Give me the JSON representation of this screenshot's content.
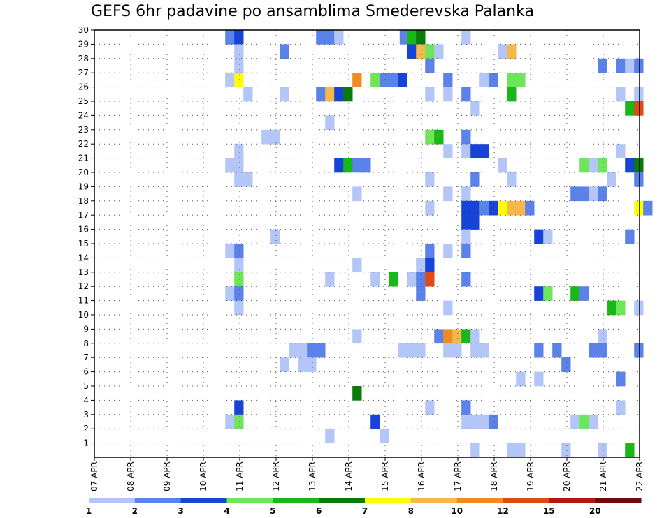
{
  "chart_data": {
    "type": "heatmap",
    "title": "GEFS 6hr padavine po ansamblima Smederevska Palanka",
    "x_tick_labels": [
      "07 APR",
      "08 APR",
      "09 APR",
      "10 APR",
      "11 APR",
      "12 APR",
      "13 APR",
      "14 APR",
      "15 APR",
      "16 APR",
      "17 APR",
      "18 APR",
      "19 APR",
      "20 APR",
      "21 APR",
      "22 APR"
    ],
    "y_tick_labels": [
      "1",
      "2",
      "3",
      "4",
      "5",
      "6",
      "7",
      "8",
      "9",
      "10",
      "11",
      "12",
      "13",
      "14",
      "15",
      "16",
      "17",
      "18",
      "19",
      "20",
      "21",
      "22",
      "23",
      "24",
      "25",
      "26",
      "27",
      "28",
      "29",
      "30"
    ],
    "x_range_days": [
      0,
      15
    ],
    "y_range": [
      0,
      30
    ],
    "grid": true,
    "colorbar": {
      "labels": [
        "1",
        "2",
        "3",
        "4",
        "5",
        "6",
        "7",
        "8",
        "10",
        "12",
        "15",
        "20"
      ],
      "colors": [
        "#b3c6f7",
        "#5b82e8",
        "#1744d6",
        "#6ee65a",
        "#19b819",
        "#0a7a0a",
        "#ffff00",
        "#f5b84a",
        "#f08c1e",
        "#e04a14",
        "#b81414",
        "#6e0a0a"
      ]
    },
    "cells": [
      [
        30,
        3.6,
        2
      ],
      [
        30,
        3.85,
        3
      ],
      [
        30,
        6.1,
        2
      ],
      [
        30,
        6.35,
        2
      ],
      [
        30,
        6.6,
        1
      ],
      [
        30,
        8.4,
        2
      ],
      [
        30,
        8.6,
        5
      ],
      [
        30,
        8.85,
        6
      ],
      [
        30,
        10.1,
        1
      ],
      [
        29,
        3.85,
        1
      ],
      [
        29,
        5.1,
        2
      ],
      [
        29,
        8.6,
        3
      ],
      [
        29,
        8.85,
        8
      ],
      [
        29,
        9.1,
        4
      ],
      [
        29,
        9.35,
        1
      ],
      [
        29,
        11.1,
        1
      ],
      [
        29,
        11.35,
        8
      ],
      [
        28,
        3.85,
        1
      ],
      [
        28,
        9.1,
        2
      ],
      [
        28,
        13.85,
        2
      ],
      [
        28,
        14.35,
        2
      ],
      [
        28,
        14.6,
        1
      ],
      [
        28,
        14.85,
        2
      ],
      [
        27,
        3.6,
        1
      ],
      [
        27,
        3.85,
        7
      ],
      [
        27,
        7.1,
        9
      ],
      [
        27,
        7.6,
        4
      ],
      [
        27,
        7.85,
        2
      ],
      [
        27,
        8.1,
        2
      ],
      [
        27,
        8.35,
        3
      ],
      [
        27,
        9.6,
        2
      ],
      [
        27,
        10.6,
        1
      ],
      [
        27,
        10.85,
        2
      ],
      [
        27,
        11.35,
        4
      ],
      [
        27,
        11.6,
        4
      ],
      [
        26,
        4.1,
        1
      ],
      [
        26,
        5.1,
        1
      ],
      [
        26,
        6.1,
        2
      ],
      [
        26,
        6.35,
        8
      ],
      [
        26,
        6.6,
        3
      ],
      [
        26,
        6.85,
        6
      ],
      [
        26,
        9.1,
        1
      ],
      [
        26,
        9.6,
        1
      ],
      [
        26,
        10.1,
        2
      ],
      [
        26,
        11.35,
        5
      ],
      [
        26,
        14.35,
        1
      ],
      [
        26,
        14.85,
        1
      ],
      [
        25,
        10.35,
        1
      ],
      [
        25,
        14.6,
        5
      ],
      [
        25,
        14.85,
        10
      ],
      [
        24,
        6.35,
        1
      ],
      [
        23,
        4.6,
        1
      ],
      [
        23,
        4.85,
        1
      ],
      [
        23,
        9.1,
        4
      ],
      [
        23,
        9.35,
        5
      ],
      [
        23,
        10.1,
        2
      ],
      [
        22,
        3.85,
        1
      ],
      [
        22,
        9.6,
        1
      ],
      [
        22,
        10.1,
        1
      ],
      [
        22,
        10.35,
        3
      ],
      [
        22,
        10.6,
        3
      ],
      [
        22,
        14.35,
        1
      ],
      [
        21,
        3.6,
        1
      ],
      [
        21,
        3.85,
        1
      ],
      [
        21,
        6.6,
        3
      ],
      [
        21,
        6.85,
        5
      ],
      [
        21,
        7.1,
        2
      ],
      [
        21,
        7.35,
        2
      ],
      [
        21,
        11.1,
        1
      ],
      [
        21,
        13.35,
        4
      ],
      [
        21,
        13.6,
        1
      ],
      [
        21,
        13.85,
        4
      ],
      [
        21,
        14.6,
        3
      ],
      [
        21,
        14.85,
        6
      ],
      [
        20,
        3.85,
        1
      ],
      [
        20,
        4.1,
        1
      ],
      [
        20,
        9.1,
        1
      ],
      [
        20,
        10.35,
        2
      ],
      [
        20,
        11.35,
        1
      ],
      [
        20,
        14.1,
        1
      ],
      [
        20,
        14.85,
        2
      ],
      [
        19,
        7.1,
        1
      ],
      [
        19,
        9.6,
        1
      ],
      [
        19,
        10.1,
        1
      ],
      [
        19,
        13.1,
        2
      ],
      [
        19,
        13.35,
        2
      ],
      [
        19,
        13.6,
        1
      ],
      [
        19,
        13.85,
        2
      ],
      [
        18,
        9.1,
        1
      ],
      [
        18,
        10.1,
        3
      ],
      [
        18,
        10.35,
        3
      ],
      [
        18,
        10.6,
        2
      ],
      [
        18,
        10.85,
        3
      ],
      [
        18,
        11.1,
        7
      ],
      [
        18,
        11.35,
        8
      ],
      [
        18,
        11.6,
        8
      ],
      [
        18,
        11.85,
        2
      ],
      [
        18,
        14.85,
        7
      ],
      [
        18,
        15.1,
        2
      ],
      [
        17,
        10.1,
        3
      ],
      [
        17,
        10.35,
        3
      ],
      [
        16,
        4.85,
        1
      ],
      [
        16,
        10.1,
        1
      ],
      [
        16,
        12.1,
        3
      ],
      [
        16,
        12.35,
        1
      ],
      [
        16,
        14.6,
        2
      ],
      [
        15,
        3.6,
        1
      ],
      [
        15,
        3.85,
        2
      ],
      [
        15,
        9.1,
        2
      ],
      [
        15,
        9.6,
        1
      ],
      [
        15,
        10.1,
        2
      ],
      [
        14,
        3.85,
        1
      ],
      [
        14,
        7.1,
        1
      ],
      [
        14,
        8.85,
        1
      ],
      [
        14,
        9.1,
        3
      ],
      [
        13,
        3.85,
        4
      ],
      [
        13,
        6.35,
        1
      ],
      [
        13,
        7.6,
        1
      ],
      [
        13,
        8.1,
        5
      ],
      [
        13,
        8.6,
        1
      ],
      [
        13,
        8.85,
        2
      ],
      [
        13,
        9.1,
        10
      ],
      [
        13,
        10.1,
        2
      ],
      [
        12,
        3.6,
        1
      ],
      [
        12,
        3.85,
        2
      ],
      [
        12,
        8.85,
        2
      ],
      [
        12,
        12.1,
        3
      ],
      [
        12,
        12.35,
        4
      ],
      [
        12,
        13.1,
        5
      ],
      [
        12,
        13.35,
        2
      ],
      [
        11,
        3.85,
        1
      ],
      [
        11,
        9.6,
        1
      ],
      [
        11,
        14.1,
        5
      ],
      [
        11,
        14.35,
        4
      ],
      [
        11,
        14.85,
        1
      ],
      [
        9,
        7.1,
        1
      ],
      [
        9,
        9.35,
        2
      ],
      [
        9,
        9.6,
        9
      ],
      [
        9,
        9.85,
        8
      ],
      [
        9,
        10.1,
        5
      ],
      [
        9,
        10.35,
        1
      ],
      [
        9,
        13.85,
        1
      ],
      [
        8,
        5.35,
        1
      ],
      [
        8,
        5.6,
        1
      ],
      [
        8,
        5.85,
        2
      ],
      [
        8,
        6.1,
        2
      ],
      [
        8,
        8.35,
        1
      ],
      [
        8,
        8.6,
        1
      ],
      [
        8,
        8.85,
        1
      ],
      [
        8,
        9.6,
        1
      ],
      [
        8,
        9.85,
        1
      ],
      [
        8,
        10.35,
        1
      ],
      [
        8,
        10.6,
        1
      ],
      [
        8,
        12.1,
        2
      ],
      [
        8,
        12.6,
        2
      ],
      [
        8,
        13.6,
        2
      ],
      [
        8,
        13.85,
        2
      ],
      [
        8,
        14.85,
        2
      ],
      [
        7,
        5.1,
        1
      ],
      [
        7,
        5.6,
        1
      ],
      [
        7,
        5.85,
        1
      ],
      [
        7,
        12.85,
        2
      ],
      [
        6,
        11.6,
        1
      ],
      [
        6,
        12.1,
        1
      ],
      [
        6,
        14.35,
        2
      ],
      [
        5,
        7.1,
        6
      ],
      [
        4,
        3.85,
        3
      ],
      [
        4,
        9.1,
        1
      ],
      [
        4,
        10.1,
        2
      ],
      [
        4,
        14.35,
        1
      ],
      [
        3,
        3.6,
        1
      ],
      [
        3,
        3.85,
        4
      ],
      [
        3,
        7.6,
        3
      ],
      [
        3,
        10.1,
        1
      ],
      [
        3,
        10.35,
        1
      ],
      [
        3,
        10.6,
        1
      ],
      [
        3,
        10.85,
        2
      ],
      [
        3,
        13.1,
        1
      ],
      [
        3,
        13.35,
        4
      ],
      [
        3,
        13.6,
        1
      ],
      [
        2,
        6.35,
        1
      ],
      [
        2,
        7.85,
        1
      ],
      [
        1,
        10.35,
        1
      ],
      [
        1,
        11.35,
        1
      ],
      [
        1,
        11.6,
        1
      ],
      [
        1,
        12.85,
        1
      ],
      [
        1,
        13.85,
        1
      ],
      [
        1,
        14.6,
        5
      ]
    ]
  }
}
